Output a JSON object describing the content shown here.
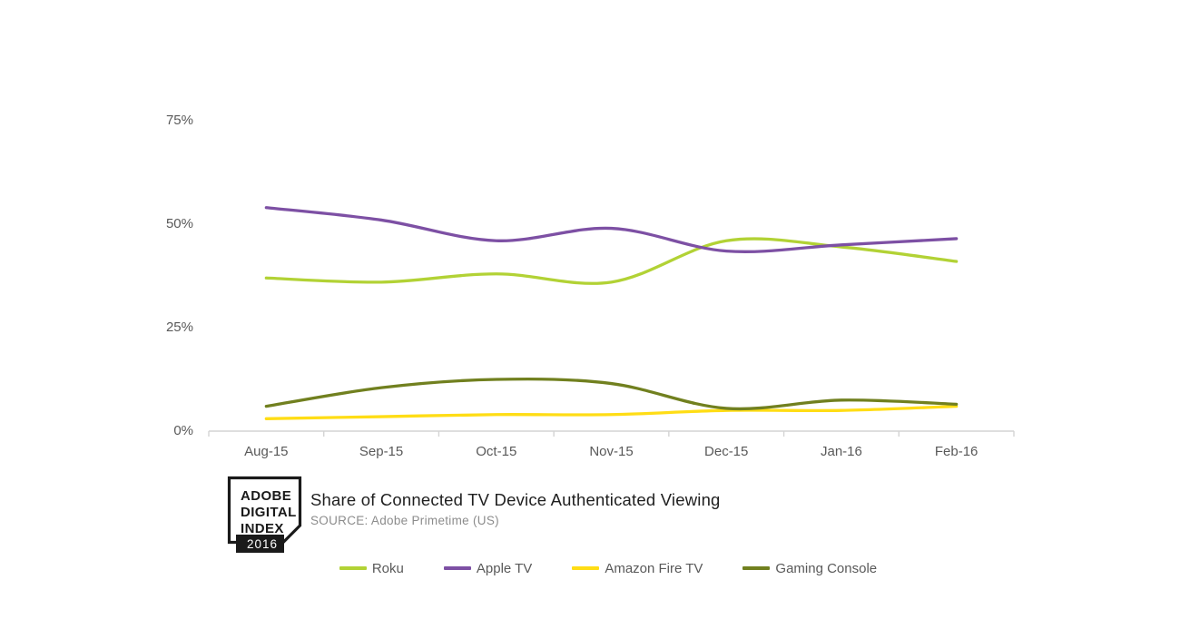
{
  "title": "Share of Connected TV Device Authenticated Viewing",
  "source": "SOURCE: Adobe Primetime (US)",
  "logo": {
    "line1": "ADOBE",
    "line2": "DIGITAL",
    "line3": "INDEX",
    "year": "2016"
  },
  "colors": {
    "background": "#ffffff",
    "axis": "#d4d4d4",
    "tick_label": "#595959",
    "title_text": "#1f1f1f",
    "source_text": "#8c8c8c",
    "logo_ink": "#1a1a1a"
  },
  "chart_data": {
    "type": "line",
    "x": [
      "Aug-15",
      "Sep-15",
      "Oct-15",
      "Nov-15",
      "Dec-15",
      "Jan-16",
      "Feb-16"
    ],
    "xlabel": "",
    "ylabel": "",
    "y_ticks": [
      "0%",
      "25%",
      "50%",
      "75%"
    ],
    "y_tick_values": [
      0,
      25,
      50,
      75
    ],
    "ylim": [
      0,
      80
    ],
    "grid": false,
    "legend_position": "bottom",
    "series": [
      {
        "name": "Roku",
        "color": "#b2d235",
        "values": [
          37,
          36,
          38,
          36,
          46,
          44.5,
          41
        ]
      },
      {
        "name": "Apple TV",
        "color": "#7d50a4",
        "values": [
          54,
          51,
          46,
          49,
          43.5,
          45,
          46.5
        ]
      },
      {
        "name": "Amazon Fire TV",
        "color": "#ffdd15",
        "values": [
          3,
          3.5,
          4,
          4,
          5,
          5,
          6
        ]
      },
      {
        "name": "Gaming Console",
        "color": "#71801f",
        "values": [
          6,
          10.5,
          12.5,
          11.5,
          5.5,
          7.5,
          6.5
        ]
      }
    ]
  }
}
